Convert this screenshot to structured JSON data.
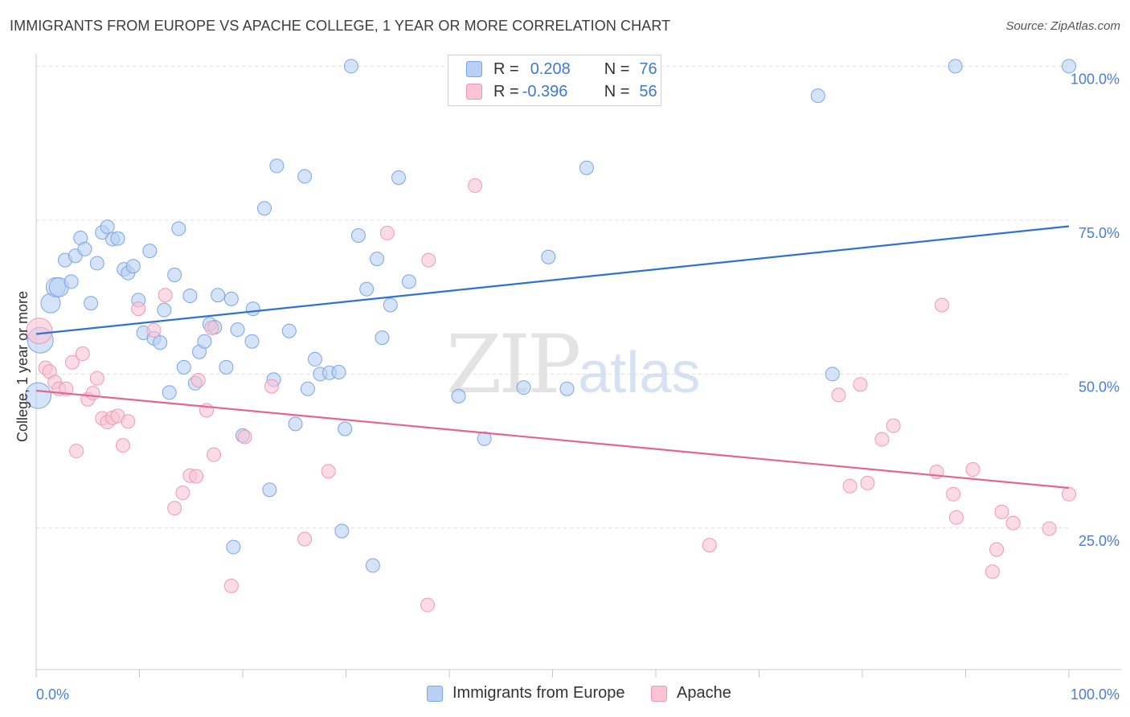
{
  "title": "IMMIGRANTS FROM EUROPE VS APACHE COLLEGE, 1 YEAR OR MORE CORRELATION CHART",
  "source": "Source: ZipAtlas.com",
  "watermark": {
    "zip": "ZIP",
    "atlas": "atlas"
  },
  "colors": {
    "blue_fill": "#b7d0f3",
    "blue_stroke": "#7aa6e6",
    "blue_line": "#2f72d0",
    "pink_fill": "#f8c3d3",
    "pink_stroke": "#ef9ab4",
    "pink_line": "#e3668e",
    "axis_text": "#4a7ed6"
  },
  "legend": {
    "r_label": "R =",
    "n_label": "N =",
    "rows": [
      {
        "r": "0.208",
        "n": "76"
      },
      {
        "r": "-0.396",
        "n": "56"
      }
    ]
  },
  "bottom_legend": [
    "Immigrants from Europe",
    "Apache"
  ],
  "chart_data": {
    "type": "scatter",
    "xlabel": "",
    "ylabel": "College, 1 year or more",
    "x_tick_labels": [
      "0.0%",
      "100.0%"
    ],
    "y_tick_labels": [
      "25.0%",
      "50.0%",
      "75.0%",
      "100.0%"
    ],
    "xlim": [
      0,
      100
    ],
    "ylim": [
      2,
      102
    ],
    "grid": "dashed horizontal",
    "legend_position": "top-center",
    "series": [
      {
        "name": "Immigrants from Europe",
        "trend": [
          [
            0,
            56.5
          ],
          [
            100,
            74
          ]
        ],
        "points": [
          [
            0.2,
            46.5,
            2
          ],
          [
            0.4,
            55.5,
            2
          ],
          [
            1.4,
            61.5,
            1
          ],
          [
            1.9,
            64.1,
            1
          ],
          [
            2.2,
            64.1,
            1
          ],
          [
            2.8,
            68.5,
            0
          ],
          [
            3.4,
            65.0,
            0
          ],
          [
            3.8,
            69.2,
            0
          ],
          [
            4.3,
            72.1,
            0
          ],
          [
            4.7,
            70.3,
            0
          ],
          [
            5.3,
            61.5,
            0
          ],
          [
            5.9,
            68.0,
            0
          ],
          [
            6.4,
            73.0,
            0
          ],
          [
            6.9,
            73.9,
            0
          ],
          [
            7.4,
            71.9,
            0
          ],
          [
            7.9,
            72.0,
            0
          ],
          [
            8.5,
            67.0,
            0
          ],
          [
            8.9,
            66.4,
            0
          ],
          [
            9.4,
            67.5,
            0
          ],
          [
            9.9,
            62.0,
            0
          ],
          [
            10.4,
            56.7,
            0
          ],
          [
            11.0,
            70.0,
            0
          ],
          [
            11.4,
            55.8,
            0
          ],
          [
            12.0,
            55.1,
            0
          ],
          [
            12.4,
            60.4,
            0
          ],
          [
            12.9,
            47.0,
            0
          ],
          [
            13.4,
            66.1,
            0
          ],
          [
            13.8,
            73.6,
            0
          ],
          [
            14.3,
            51.1,
            0
          ],
          [
            14.9,
            62.7,
            0
          ],
          [
            15.4,
            48.5,
            0
          ],
          [
            15.8,
            53.6,
            0
          ],
          [
            16.3,
            55.3,
            0
          ],
          [
            16.8,
            58.1,
            0
          ],
          [
            17.3,
            57.6,
            0
          ],
          [
            17.6,
            62.8,
            0
          ],
          [
            18.4,
            51.1,
            0
          ],
          [
            18.9,
            62.2,
            0
          ],
          [
            19.5,
            57.2,
            0
          ],
          [
            20.0,
            40.0,
            0
          ],
          [
            20.9,
            55.3,
            0
          ],
          [
            21.0,
            60.6,
            0
          ],
          [
            22.1,
            76.9,
            0
          ],
          [
            22.6,
            31.2,
            0
          ],
          [
            23.0,
            49.1,
            0
          ],
          [
            23.3,
            83.8,
            0
          ],
          [
            24.5,
            57.0,
            0
          ],
          [
            25.1,
            41.9,
            0
          ],
          [
            26.0,
            82.1,
            0
          ],
          [
            26.3,
            47.6,
            0
          ],
          [
            27.0,
            52.4,
            0
          ],
          [
            27.5,
            50.0,
            0
          ],
          [
            28.4,
            50.2,
            0
          ],
          [
            29.3,
            50.3,
            0
          ],
          [
            29.6,
            24.5,
            0
          ],
          [
            29.9,
            41.1,
            0
          ],
          [
            30.5,
            100.0,
            0
          ],
          [
            31.2,
            72.5,
            0
          ],
          [
            32.0,
            63.8,
            0
          ],
          [
            32.6,
            18.9,
            0
          ],
          [
            33.0,
            68.7,
            0
          ],
          [
            33.5,
            55.9,
            0
          ],
          [
            34.3,
            61.2,
            0
          ],
          [
            35.1,
            81.9,
            0
          ],
          [
            36.1,
            65.0,
            0
          ],
          [
            40.9,
            46.4,
            0
          ],
          [
            43.4,
            39.5,
            0
          ],
          [
            47.2,
            47.8,
            0
          ],
          [
            49.6,
            69.0,
            0
          ],
          [
            51.4,
            47.6,
            0
          ],
          [
            53.3,
            83.5,
            0
          ],
          [
            75.7,
            95.2,
            0
          ],
          [
            77.1,
            50.0,
            0
          ],
          [
            89.0,
            100.0,
            0
          ],
          [
            100.0,
            100.0,
            0
          ],
          [
            19.1,
            21.9,
            0
          ]
        ]
      },
      {
        "name": "Apache",
        "trend": [
          [
            0,
            47.3
          ],
          [
            100,
            31.5
          ]
        ],
        "points": [
          [
            0.3,
            57.0,
            2
          ],
          [
            0.9,
            51.0,
            0
          ],
          [
            1.3,
            50.4,
            0
          ],
          [
            1.8,
            48.7,
            0
          ],
          [
            2.2,
            47.6,
            0
          ],
          [
            2.9,
            47.6,
            0
          ],
          [
            3.5,
            51.9,
            0
          ],
          [
            3.9,
            37.5,
            0
          ],
          [
            4.5,
            53.3,
            0
          ],
          [
            5.0,
            45.9,
            0
          ],
          [
            5.5,
            46.9,
            0
          ],
          [
            5.9,
            49.3,
            0
          ],
          [
            6.4,
            42.8,
            0
          ],
          [
            6.9,
            42.2,
            0
          ],
          [
            7.4,
            42.9,
            0
          ],
          [
            7.9,
            43.2,
            0
          ],
          [
            8.4,
            38.4,
            0
          ],
          [
            8.9,
            42.3,
            0
          ],
          [
            9.9,
            60.6,
            0
          ],
          [
            11.4,
            57.1,
            0
          ],
          [
            12.5,
            62.8,
            0
          ],
          [
            13.4,
            28.2,
            0
          ],
          [
            14.2,
            30.7,
            0
          ],
          [
            14.9,
            33.5,
            0
          ],
          [
            15.5,
            33.4,
            0
          ],
          [
            15.7,
            49.0,
            0
          ],
          [
            16.5,
            44.1,
            0
          ],
          [
            17.0,
            57.5,
            0
          ],
          [
            17.2,
            36.9,
            0
          ],
          [
            18.9,
            15.6,
            0
          ],
          [
            20.2,
            39.8,
            0
          ],
          [
            22.8,
            48.0,
            0
          ],
          [
            26.0,
            23.2,
            0
          ],
          [
            28.3,
            34.2,
            0
          ],
          [
            34.0,
            72.9,
            0
          ],
          [
            37.9,
            12.5,
            0
          ],
          [
            38.0,
            68.5,
            0
          ],
          [
            42.5,
            80.6,
            0
          ],
          [
            65.2,
            22.2,
            0
          ],
          [
            77.7,
            46.6,
            0
          ],
          [
            78.8,
            31.8,
            0
          ],
          [
            79.8,
            48.3,
            0
          ],
          [
            80.5,
            32.3,
            0
          ],
          [
            81.9,
            39.4,
            0
          ],
          [
            83.0,
            41.6,
            0
          ],
          [
            87.2,
            34.1,
            0
          ],
          [
            87.7,
            61.2,
            0
          ],
          [
            88.8,
            30.5,
            0
          ],
          [
            89.1,
            26.7,
            0
          ],
          [
            90.7,
            34.5,
            0
          ],
          [
            92.6,
            17.9,
            0
          ],
          [
            93.0,
            21.5,
            0
          ],
          [
            93.5,
            27.6,
            0
          ],
          [
            94.6,
            25.8,
            0
          ],
          [
            98.1,
            24.9,
            0
          ],
          [
            100.0,
            30.5,
            0
          ]
        ]
      }
    ]
  }
}
